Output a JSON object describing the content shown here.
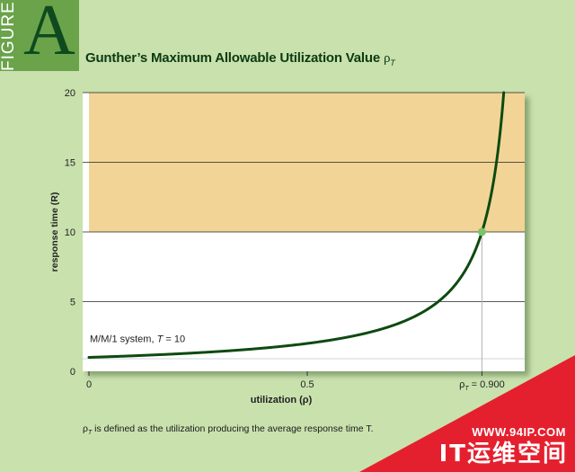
{
  "figure": {
    "word": "FIGURE",
    "letter": "A"
  },
  "title": {
    "text": "Gunther’s Maximum Allowable Utilization Value ",
    "symbol": "ρ",
    "sub": "T"
  },
  "chart_data": {
    "type": "line",
    "title": "Gunther’s Maximum Allowable Utilization Value ρT",
    "xlabel": "utilization (ρ)",
    "ylabel": "response time (R)",
    "xlim": [
      0,
      1
    ],
    "ylim": [
      0,
      20
    ],
    "x_ticks": [
      "0",
      "0.5"
    ],
    "y_ticks": [
      "0",
      "5",
      "10",
      "15",
      "20"
    ],
    "marker_label": {
      "symbol": "ρ",
      "sub": "T",
      "text": " = 0.900"
    },
    "annotation": {
      "text": "M/M/1 system,  ",
      "var": "T",
      "rest": " = 10"
    },
    "series": [
      {
        "x": [
          0,
          0.1,
          0.2,
          0.3,
          0.4,
          0.5,
          0.6,
          0.7,
          0.8,
          0.85,
          0.9,
          0.92,
          0.94,
          0.95
        ],
        "y": [
          1,
          1.11,
          1.25,
          1.43,
          1.67,
          2,
          2.5,
          3.33,
          5,
          6.67,
          10,
          12.5,
          16.67,
          20
        ]
      }
    ],
    "highlight_point": {
      "x": 0.9,
      "y": 10
    },
    "shaded_region": {
      "y_from": 10,
      "y_to": 20
    },
    "grid": true,
    "colors": {
      "curve": "#0d4a10",
      "shade": "#f2d596",
      "plot_bg": "#ffffff",
      "point": "#7cc36b"
    }
  },
  "footnote": {
    "symbol": "ρ",
    "sub": "T",
    "text": " is defined as the utilization producing the average response time T."
  },
  "watermark": {
    "url": "WWW.94IP.COM",
    "text": "IT运维空间"
  }
}
